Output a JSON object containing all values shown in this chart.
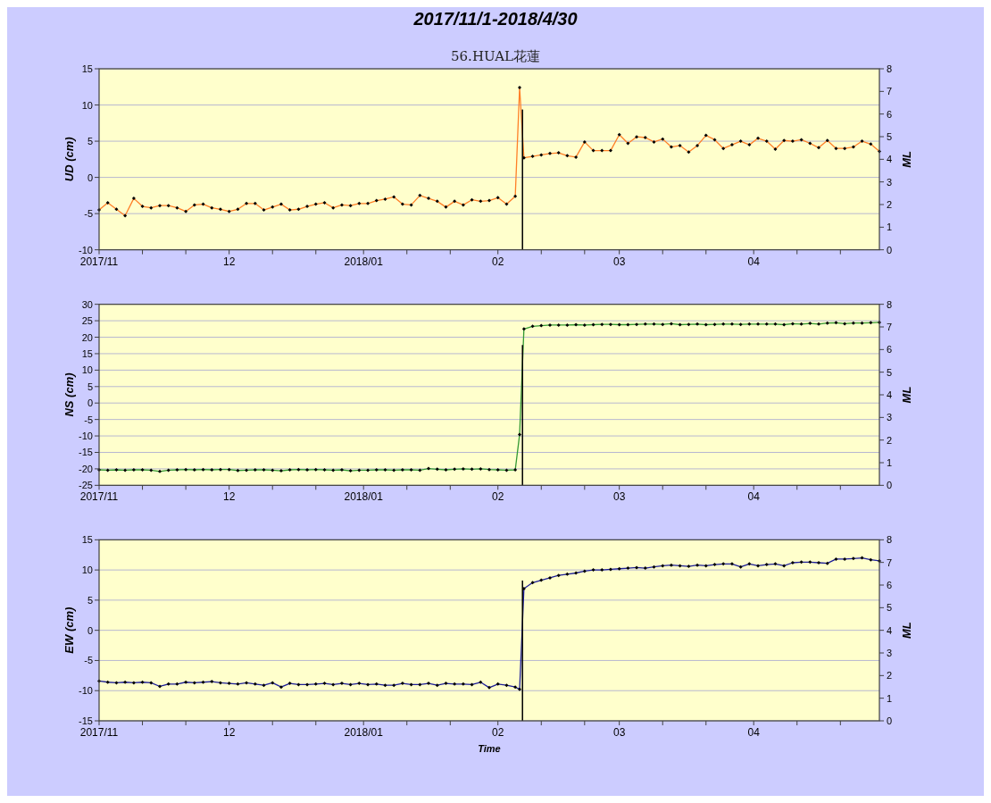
{
  "chart_data": [
    {
      "type": "line",
      "title": "2017/11/1-2018/4/30",
      "subtitle": "56.HUAL花蓮",
      "ylabel": "UD (cm)",
      "y2label": "ML",
      "grid": "y",
      "marker": "diamond",
      "line_style": "solid",
      "xlim": [
        "2017-11-01",
        "2018-04-30"
      ],
      "xticks": [
        {
          "value": "2017-11-01",
          "label": "2017/11"
        },
        {
          "value": "2017-11-11",
          "label": null
        },
        {
          "value": "2017-11-21",
          "label": null
        },
        {
          "value": "2017-12-01",
          "label": "12"
        },
        {
          "value": "2017-12-11",
          "label": null
        },
        {
          "value": "2017-12-21",
          "label": null
        },
        {
          "value": "2018-01-01",
          "label": "2018/01"
        },
        {
          "value": "2018-01-11",
          "label": null
        },
        {
          "value": "2018-01-21",
          "label": null
        },
        {
          "value": "2018-02-01",
          "label": "02"
        },
        {
          "value": "2018-02-11",
          "label": null
        },
        {
          "value": "2018-02-21",
          "label": null
        },
        {
          "value": "2018-03-01",
          "label": "03"
        },
        {
          "value": "2018-03-11",
          "label": null
        },
        {
          "value": "2018-03-21",
          "label": null
        },
        {
          "value": "2018-04-01",
          "label": "04"
        },
        {
          "value": "2018-04-11",
          "label": null
        },
        {
          "value": "2018-04-21",
          "label": null
        }
      ],
      "ylim": [
        -10,
        15
      ],
      "yticks": [
        -10,
        -5,
        0,
        5,
        10,
        15
      ],
      "y2lim": [
        0,
        8
      ],
      "y2ticks": [
        0,
        1,
        2,
        3,
        4,
        5,
        6,
        7,
        8
      ],
      "x": [
        "2017-11-01",
        "2017-11-03",
        "2017-11-05",
        "2017-11-07",
        "2017-11-09",
        "2017-11-11",
        "2017-11-13",
        "2017-11-15",
        "2017-11-17",
        "2017-11-19",
        "2017-11-21",
        "2017-11-23",
        "2017-11-25",
        "2017-11-27",
        "2017-11-29",
        "2017-12-01",
        "2017-12-03",
        "2017-12-05",
        "2017-12-07",
        "2017-12-09",
        "2017-12-11",
        "2017-12-13",
        "2017-12-15",
        "2017-12-17",
        "2017-12-19",
        "2017-12-21",
        "2017-12-23",
        "2017-12-25",
        "2017-12-27",
        "2017-12-29",
        "2017-12-31",
        "2018-01-02",
        "2018-01-04",
        "2018-01-06",
        "2018-01-08",
        "2018-01-10",
        "2018-01-12",
        "2018-01-14",
        "2018-01-16",
        "2018-01-18",
        "2018-01-20",
        "2018-01-22",
        "2018-01-24",
        "2018-01-26",
        "2018-01-28",
        "2018-01-30",
        "2018-02-01",
        "2018-02-03",
        "2018-02-05",
        "2018-02-06",
        "2018-02-07",
        "2018-02-09",
        "2018-02-11",
        "2018-02-13",
        "2018-02-15",
        "2018-02-17",
        "2018-02-19",
        "2018-02-21",
        "2018-02-23",
        "2018-02-25",
        "2018-02-27",
        "2018-03-01",
        "2018-03-03",
        "2018-03-05",
        "2018-03-07",
        "2018-03-09",
        "2018-03-11",
        "2018-03-13",
        "2018-03-15",
        "2018-03-17",
        "2018-03-19",
        "2018-03-21",
        "2018-03-23",
        "2018-03-25",
        "2018-03-27",
        "2018-03-29",
        "2018-03-31",
        "2018-04-02",
        "2018-04-04",
        "2018-04-06",
        "2018-04-08",
        "2018-04-10",
        "2018-04-12",
        "2018-04-14",
        "2018-04-16",
        "2018-04-18",
        "2018-04-20",
        "2018-04-22",
        "2018-04-24",
        "2018-04-26",
        "2018-04-28",
        "2018-04-30"
      ],
      "series": [
        {
          "color": "#ff7f27",
          "values": [
            -4.5,
            -3.5,
            -4.4,
            -5.3,
            -2.9,
            -4.0,
            -4.2,
            -3.9,
            -3.9,
            -4.2,
            -4.7,
            -3.8,
            -3.7,
            -4.2,
            -4.4,
            -4.7,
            -4.4,
            -3.6,
            -3.6,
            -4.5,
            -4.1,
            -3.7,
            -4.5,
            -4.4,
            -4.0,
            -3.7,
            -3.5,
            -4.2,
            -3.8,
            -3.9,
            -3.6,
            -3.6,
            -3.2,
            -3.0,
            -2.7,
            -3.7,
            -3.8,
            -2.5,
            -2.9,
            -3.3,
            -4.1,
            -3.3,
            -3.8,
            -3.1,
            -3.3,
            -3.2,
            -2.8,
            -3.7,
            -2.6,
            12.4,
            2.7,
            2.9,
            3.1,
            3.3,
            3.4,
            3.0,
            2.8,
            4.9,
            3.7,
            3.7,
            3.7,
            5.9,
            4.7,
            5.6,
            5.5,
            4.9,
            5.3,
            4.2,
            4.4,
            3.5,
            4.4,
            5.8,
            5.2,
            4.0,
            4.5,
            5.0,
            4.5,
            5.4,
            5.0,
            3.9,
            5.1,
            5.0,
            5.2,
            4.7,
            4.1,
            5.1,
            4.0,
            4.0,
            4.2,
            5.0,
            4.6,
            3.6
          ]
        },
        {
          "type": "bar",
          "axis": "y2",
          "x": [
            "2018-02-06T16:00"
          ],
          "values": [
            6.2
          ],
          "color": "#000000"
        }
      ]
    },
    {
      "type": "line",
      "ylabel": "NS (cm)",
      "y2label": "ML",
      "grid": "y",
      "marker": "diamond",
      "line_style": "solid",
      "xlim": [
        "2017-11-01",
        "2018-04-30"
      ],
      "xticks": [
        {
          "value": "2017-11-01",
          "label": "2017/11"
        },
        {
          "value": "2017-11-11",
          "label": null
        },
        {
          "value": "2017-11-21",
          "label": null
        },
        {
          "value": "2017-12-01",
          "label": "12"
        },
        {
          "value": "2017-12-11",
          "label": null
        },
        {
          "value": "2017-12-21",
          "label": null
        },
        {
          "value": "2018-01-01",
          "label": "2018/01"
        },
        {
          "value": "2018-01-11",
          "label": null
        },
        {
          "value": "2018-01-21",
          "label": null
        },
        {
          "value": "2018-02-01",
          "label": "02"
        },
        {
          "value": "2018-02-11",
          "label": null
        },
        {
          "value": "2018-02-21",
          "label": null
        },
        {
          "value": "2018-03-01",
          "label": "03"
        },
        {
          "value": "2018-03-11",
          "label": null
        },
        {
          "value": "2018-03-21",
          "label": null
        },
        {
          "value": "2018-04-01",
          "label": "04"
        },
        {
          "value": "2018-04-11",
          "label": null
        },
        {
          "value": "2018-04-21",
          "label": null
        }
      ],
      "ylim": [
        -25,
        30
      ],
      "yticks": [
        -25,
        -20,
        -15,
        -10,
        -5,
        0,
        5,
        10,
        15,
        20,
        25,
        30
      ],
      "y2lim": [
        0,
        8
      ],
      "y2ticks": [
        0,
        1,
        2,
        3,
        4,
        5,
        6,
        7,
        8
      ],
      "x": [
        "2017-11-01",
        "2017-11-03",
        "2017-11-05",
        "2017-11-07",
        "2017-11-09",
        "2017-11-11",
        "2017-11-13",
        "2017-11-15",
        "2017-11-17",
        "2017-11-19",
        "2017-11-21",
        "2017-11-23",
        "2017-11-25",
        "2017-11-27",
        "2017-11-29",
        "2017-12-01",
        "2017-12-03",
        "2017-12-05",
        "2017-12-07",
        "2017-12-09",
        "2017-12-11",
        "2017-12-13",
        "2017-12-15",
        "2017-12-17",
        "2017-12-19",
        "2017-12-21",
        "2017-12-23",
        "2017-12-25",
        "2017-12-27",
        "2017-12-29",
        "2017-12-31",
        "2018-01-02",
        "2018-01-04",
        "2018-01-06",
        "2018-01-08",
        "2018-01-10",
        "2018-01-12",
        "2018-01-14",
        "2018-01-16",
        "2018-01-18",
        "2018-01-20",
        "2018-01-22",
        "2018-01-24",
        "2018-01-26",
        "2018-01-28",
        "2018-01-30",
        "2018-02-01",
        "2018-02-03",
        "2018-02-05",
        "2018-02-06",
        "2018-02-07",
        "2018-02-09",
        "2018-02-11",
        "2018-02-13",
        "2018-02-15",
        "2018-02-17",
        "2018-02-19",
        "2018-02-21",
        "2018-02-23",
        "2018-02-25",
        "2018-02-27",
        "2018-03-01",
        "2018-03-03",
        "2018-03-05",
        "2018-03-07",
        "2018-03-09",
        "2018-03-11",
        "2018-03-13",
        "2018-03-15",
        "2018-03-17",
        "2018-03-19",
        "2018-03-21",
        "2018-03-23",
        "2018-03-25",
        "2018-03-27",
        "2018-03-29",
        "2018-03-31",
        "2018-04-02",
        "2018-04-04",
        "2018-04-06",
        "2018-04-08",
        "2018-04-10",
        "2018-04-12",
        "2018-04-14",
        "2018-04-16",
        "2018-04-18",
        "2018-04-20",
        "2018-04-22",
        "2018-04-24",
        "2018-04-26",
        "2018-04-28",
        "2018-04-30"
      ],
      "series": [
        {
          "color": "#339933",
          "values": [
            -20.3,
            -20.4,
            -20.3,
            -20.4,
            -20.3,
            -20.3,
            -20.4,
            -20.8,
            -20.4,
            -20.3,
            -20.2,
            -20.3,
            -20.2,
            -20.3,
            -20.2,
            -20.2,
            -20.5,
            -20.4,
            -20.3,
            -20.3,
            -20.4,
            -20.6,
            -20.3,
            -20.2,
            -20.3,
            -20.2,
            -20.3,
            -20.4,
            -20.3,
            -20.6,
            -20.4,
            -20.4,
            -20.3,
            -20.3,
            -20.4,
            -20.3,
            -20.3,
            -20.4,
            -19.9,
            -20.1,
            -20.3,
            -20.1,
            -20.0,
            -20.1,
            -20.0,
            -20.2,
            -20.3,
            -20.4,
            -20.3,
            -9.6,
            22.5,
            23.3,
            23.5,
            23.7,
            23.7,
            23.7,
            23.8,
            23.7,
            23.8,
            23.9,
            23.9,
            23.8,
            23.8,
            23.9,
            24.0,
            24.0,
            23.9,
            24.1,
            23.8,
            23.9,
            24.0,
            23.8,
            23.9,
            24.0,
            24.0,
            23.9,
            24.0,
            24.0,
            24.0,
            24.0,
            23.8,
            24.1,
            24.0,
            24.2,
            24.0,
            24.3,
            24.4,
            24.1,
            24.3,
            24.3,
            24.4,
            24.5
          ]
        },
        {
          "type": "bar",
          "axis": "y2",
          "x": [
            "2018-02-06T16:00"
          ],
          "values": [
            6.2
          ],
          "color": "#000000"
        }
      ]
    },
    {
      "type": "line",
      "ylabel": "EW (cm)",
      "y2label": "ML",
      "xlabel": "Time",
      "grid": "y",
      "marker": "diamond",
      "line_style": "solid",
      "xlim": [
        "2017-11-01",
        "2018-04-30"
      ],
      "xticks": [
        {
          "value": "2017-11-01",
          "label": "2017/11"
        },
        {
          "value": "2017-11-11",
          "label": null
        },
        {
          "value": "2017-11-21",
          "label": null
        },
        {
          "value": "2017-12-01",
          "label": "12"
        },
        {
          "value": "2017-12-11",
          "label": null
        },
        {
          "value": "2017-12-21",
          "label": null
        },
        {
          "value": "2018-01-01",
          "label": "2018/01"
        },
        {
          "value": "2018-01-11",
          "label": null
        },
        {
          "value": "2018-01-21",
          "label": null
        },
        {
          "value": "2018-02-01",
          "label": "02"
        },
        {
          "value": "2018-02-11",
          "label": null
        },
        {
          "value": "2018-02-21",
          "label": null
        },
        {
          "value": "2018-03-01",
          "label": "03"
        },
        {
          "value": "2018-03-11",
          "label": null
        },
        {
          "value": "2018-03-21",
          "label": null
        },
        {
          "value": "2018-04-01",
          "label": "04"
        },
        {
          "value": "2018-04-11",
          "label": null
        },
        {
          "value": "2018-04-21",
          "label": null
        }
      ],
      "ylim": [
        -15,
        15
      ],
      "yticks": [
        -15,
        -10,
        -5,
        0,
        5,
        10,
        15
      ],
      "y2lim": [
        0,
        8
      ],
      "y2ticks": [
        0,
        1,
        2,
        3,
        4,
        5,
        6,
        7,
        8
      ],
      "x": [
        "2017-11-01",
        "2017-11-03",
        "2017-11-05",
        "2017-11-07",
        "2017-11-09",
        "2017-11-11",
        "2017-11-13",
        "2017-11-15",
        "2017-11-17",
        "2017-11-19",
        "2017-11-21",
        "2017-11-23",
        "2017-11-25",
        "2017-11-27",
        "2017-11-29",
        "2017-12-01",
        "2017-12-03",
        "2017-12-05",
        "2017-12-07",
        "2017-12-09",
        "2017-12-11",
        "2017-12-13",
        "2017-12-15",
        "2017-12-17",
        "2017-12-19",
        "2017-12-21",
        "2017-12-23",
        "2017-12-25",
        "2017-12-27",
        "2017-12-29",
        "2017-12-31",
        "2018-01-02",
        "2018-01-04",
        "2018-01-06",
        "2018-01-08",
        "2018-01-10",
        "2018-01-12",
        "2018-01-14",
        "2018-01-16",
        "2018-01-18",
        "2018-01-20",
        "2018-01-22",
        "2018-01-24",
        "2018-01-26",
        "2018-01-28",
        "2018-01-30",
        "2018-02-01",
        "2018-02-03",
        "2018-02-05",
        "2018-02-06",
        "2018-02-07",
        "2018-02-09",
        "2018-02-11",
        "2018-02-13",
        "2018-02-15",
        "2018-02-17",
        "2018-02-19",
        "2018-02-21",
        "2018-02-23",
        "2018-02-25",
        "2018-02-27",
        "2018-03-01",
        "2018-03-03",
        "2018-03-05",
        "2018-03-07",
        "2018-03-09",
        "2018-03-11",
        "2018-03-13",
        "2018-03-15",
        "2018-03-17",
        "2018-03-19",
        "2018-03-21",
        "2018-03-23",
        "2018-03-25",
        "2018-03-27",
        "2018-03-29",
        "2018-03-31",
        "2018-04-02",
        "2018-04-04",
        "2018-04-06",
        "2018-04-08",
        "2018-04-10",
        "2018-04-12",
        "2018-04-14",
        "2018-04-16",
        "2018-04-18",
        "2018-04-20",
        "2018-04-22",
        "2018-04-24",
        "2018-04-26",
        "2018-04-28",
        "2018-04-30"
      ],
      "series": [
        {
          "color": "#1f1f99",
          "values": [
            -8.4,
            -8.6,
            -8.7,
            -8.6,
            -8.7,
            -8.6,
            -8.7,
            -9.3,
            -8.9,
            -8.9,
            -8.6,
            -8.7,
            -8.6,
            -8.5,
            -8.7,
            -8.8,
            -8.9,
            -8.7,
            -8.9,
            -9.1,
            -8.7,
            -9.4,
            -8.8,
            -9.0,
            -9.0,
            -8.9,
            -8.8,
            -9.0,
            -8.8,
            -9.0,
            -8.8,
            -9.0,
            -8.9,
            -9.1,
            -9.1,
            -8.8,
            -9.0,
            -9.0,
            -8.8,
            -9.1,
            -8.8,
            -8.9,
            -8.9,
            -9.0,
            -8.6,
            -9.5,
            -8.9,
            -9.1,
            -9.4,
            -9.8,
            6.9,
            7.9,
            8.3,
            8.7,
            9.1,
            9.3,
            9.5,
            9.8,
            10.0,
            10.0,
            10.1,
            10.2,
            10.3,
            10.4,
            10.3,
            10.5,
            10.7,
            10.8,
            10.7,
            10.6,
            10.8,
            10.7,
            10.9,
            11.0,
            11.0,
            10.5,
            11.0,
            10.7,
            10.9,
            11.0,
            10.7,
            11.2,
            11.3,
            11.3,
            11.2,
            11.1,
            11.8,
            11.8,
            11.9,
            12.0,
            11.7,
            11.5
          ]
        },
        {
          "type": "bar",
          "axis": "y2",
          "x": [
            "2018-02-06T16:00"
          ],
          "values": [
            6.2
          ],
          "color": "#000000"
        }
      ]
    }
  ]
}
